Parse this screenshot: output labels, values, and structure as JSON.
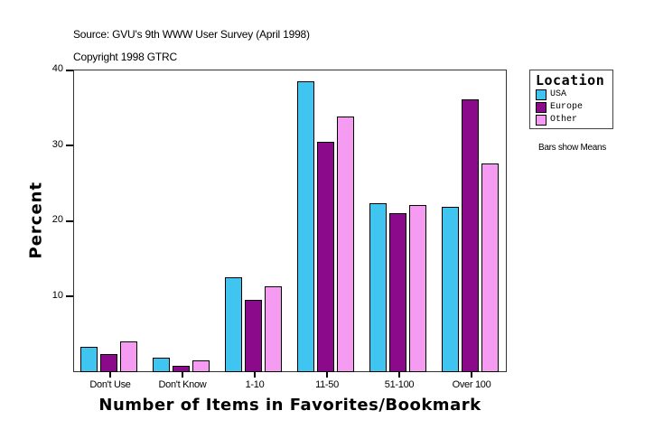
{
  "header": {
    "source": "Source: GVU's 9th WWW User Survey (April 1998)",
    "copyright": "Copyright 1998 GTRC"
  },
  "legend": {
    "title": "Location",
    "items": [
      {
        "label": "USA",
        "color": "#40C4F0"
      },
      {
        "label": "Europe",
        "color": "#8B0A8B"
      },
      {
        "label": "Other",
        "color": "#F59CF2"
      }
    ],
    "note": "Bars show Means"
  },
  "axes": {
    "y_ticks": [
      "40",
      "30",
      "20",
      "10"
    ],
    "y_title": "Percent",
    "x_title": "Number of Items in Favorites/Bookmark",
    "x_labels": [
      "Don't Use",
      "Don't Know",
      "1-10",
      "11-50",
      "51-100",
      "Over 100"
    ]
  },
  "chart_data": {
    "type": "bar",
    "title": "",
    "subtitle": "Source: GVU's 9th WWW User Survey (April 1998) / Copyright 1998 GTRC",
    "xlabel": "Number of Items in Favorites/Bookmark",
    "ylabel": "Percent",
    "ylim": [
      0,
      40
    ],
    "yticks": [
      10,
      20,
      30,
      40
    ],
    "grid": false,
    "legend_title": "Location",
    "legend_position": "right",
    "annotation": "Bars show Means",
    "categories": [
      "Don't Use",
      "Don't Know",
      "1-10",
      "11-50",
      "51-100",
      "Over 100"
    ],
    "series": [
      {
        "name": "USA",
        "color": "#40C4F0",
        "values": [
          3.2,
          1.8,
          12.5,
          38.5,
          22.3,
          21.8
        ]
      },
      {
        "name": "Europe",
        "color": "#8B0A8B",
        "values": [
          2.3,
          0.7,
          9.5,
          30.4,
          21.0,
          36.1
        ]
      },
      {
        "name": "Other",
        "color": "#F59CF2",
        "values": [
          3.9,
          1.4,
          11.2,
          33.8,
          22.0,
          27.6
        ]
      }
    ]
  }
}
